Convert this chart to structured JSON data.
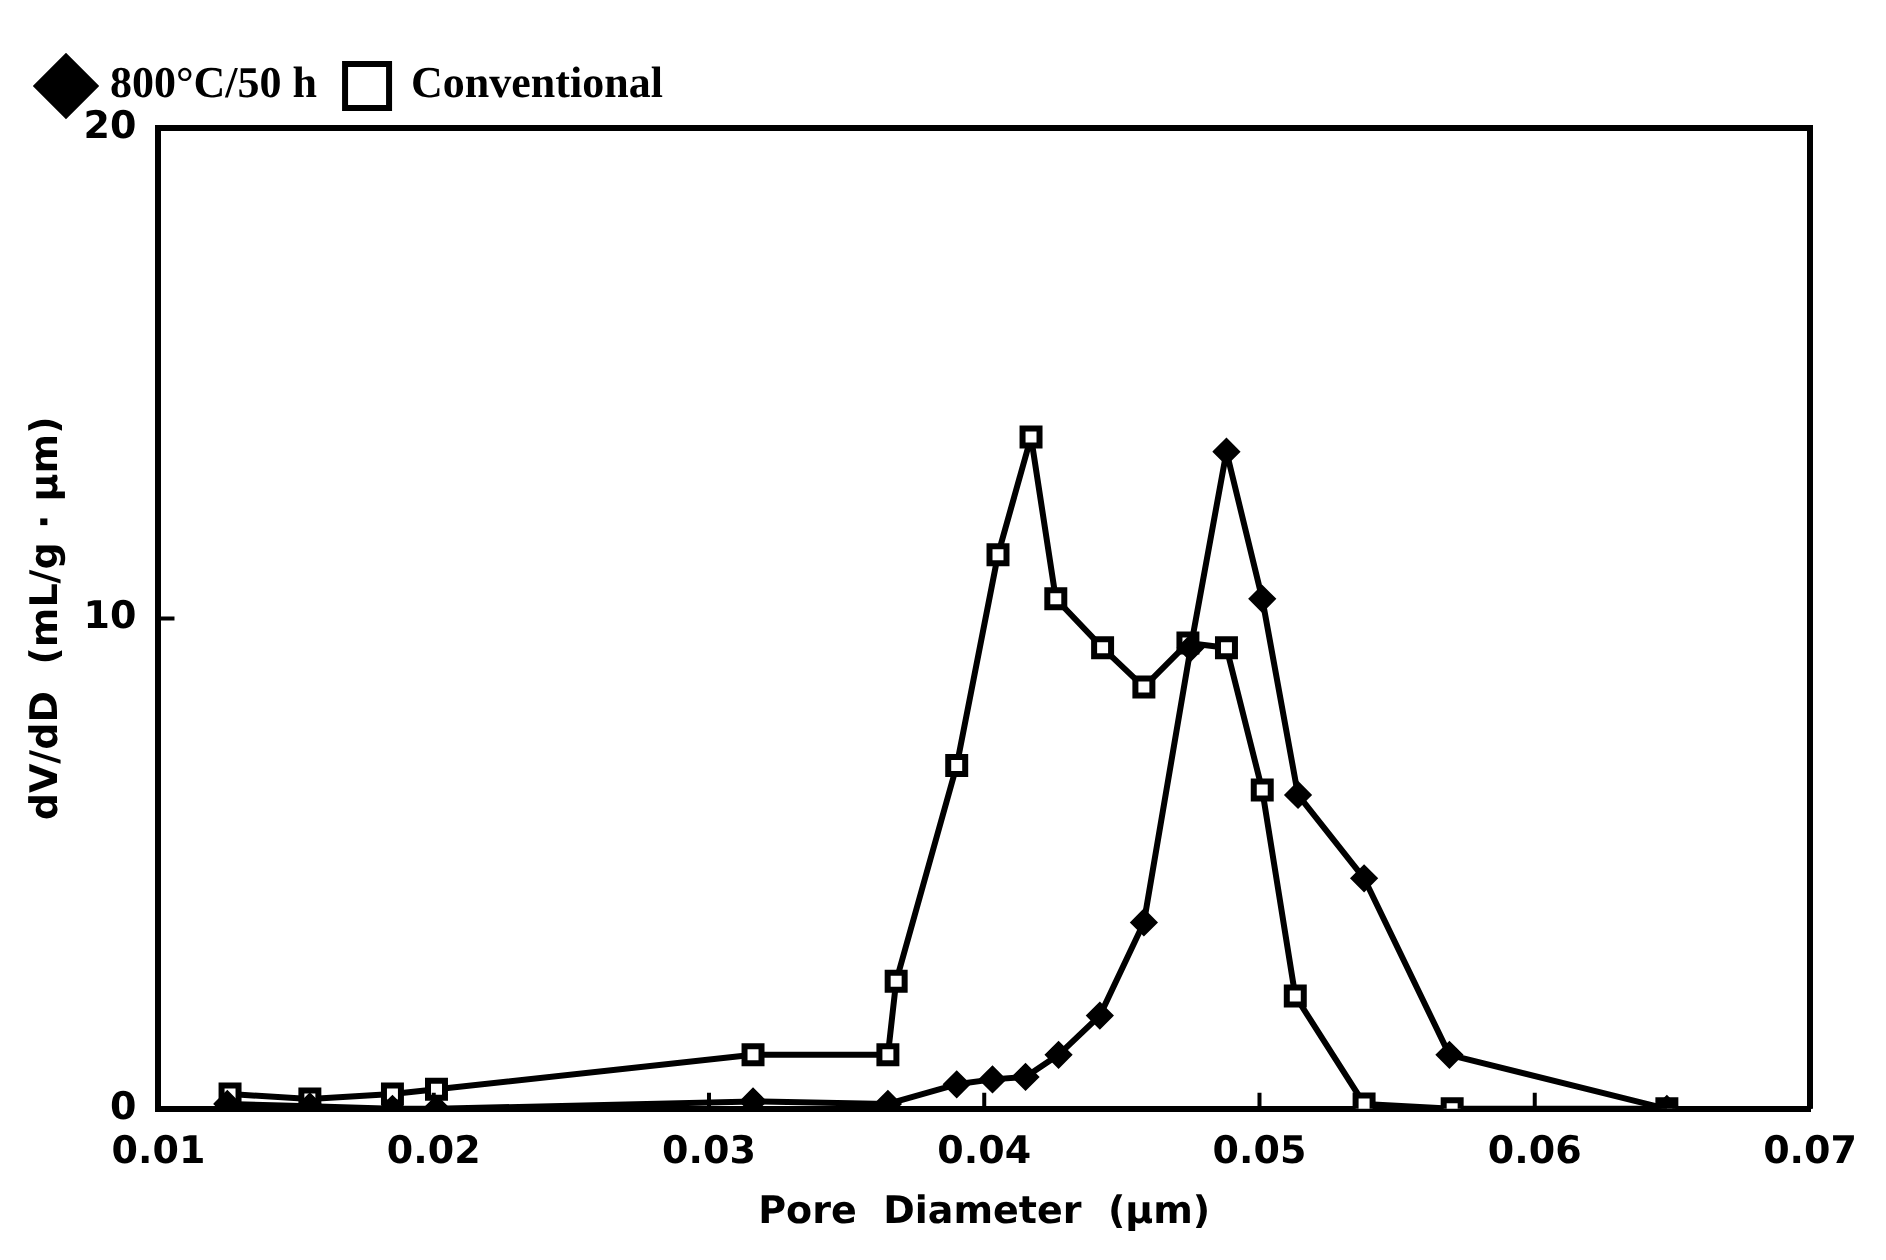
{
  "chart_data": {
    "type": "line",
    "xlabel": "Pore  Diameter  (µm)",
    "ylabel": "dV/dD  (mL/g · µm)",
    "xlim": [
      0.01,
      0.07
    ],
    "xticks": [
      0.01,
      0.02,
      0.03,
      0.04,
      0.05,
      0.06,
      0.07
    ],
    "ylim": [
      0,
      20
    ],
    "yticks": [
      0,
      10,
      20
    ],
    "grid": false,
    "legend": "top left",
    "series": [
      {
        "name": "Conventional",
        "color": "#000000",
        "marker": "square",
        "x": [
          0.0126,
          0.0155,
          0.0185,
          0.0201,
          0.0316,
          0.0365,
          0.0368,
          0.039,
          0.0405,
          0.0417,
          0.0426,
          0.0443,
          0.0458,
          0.0474,
          0.0488,
          0.0501,
          0.0513,
          0.0538,
          0.057,
          0.0648
        ],
        "values": [
          0.3,
          0.2,
          0.3,
          0.4,
          1.1,
          1.1,
          2.6,
          7.0,
          11.3,
          13.7,
          10.4,
          9.4,
          8.6,
          9.5,
          9.4,
          6.5,
          2.3,
          0.1,
          0,
          0
        ]
      },
      {
        "name": "800°C/50 h",
        "color": "#000000",
        "marker": "diamond",
        "x": [
          0.0125,
          0.0155,
          0.0185,
          0.0201,
          0.0316,
          0.0365,
          0.039,
          0.0403,
          0.0415,
          0.0427,
          0.0442,
          0.0458,
          0.0475,
          0.0488,
          0.0501,
          0.0514,
          0.0538,
          0.0569,
          0.0648
        ],
        "values": [
          0.1,
          0.05,
          0,
          0,
          0.15,
          0.1,
          0.5,
          0.6,
          0.65,
          1.1,
          1.9,
          3.8,
          9.4,
          13.4,
          10.4,
          6.4,
          4.7,
          1.1,
          0
        ]
      }
    ]
  }
}
